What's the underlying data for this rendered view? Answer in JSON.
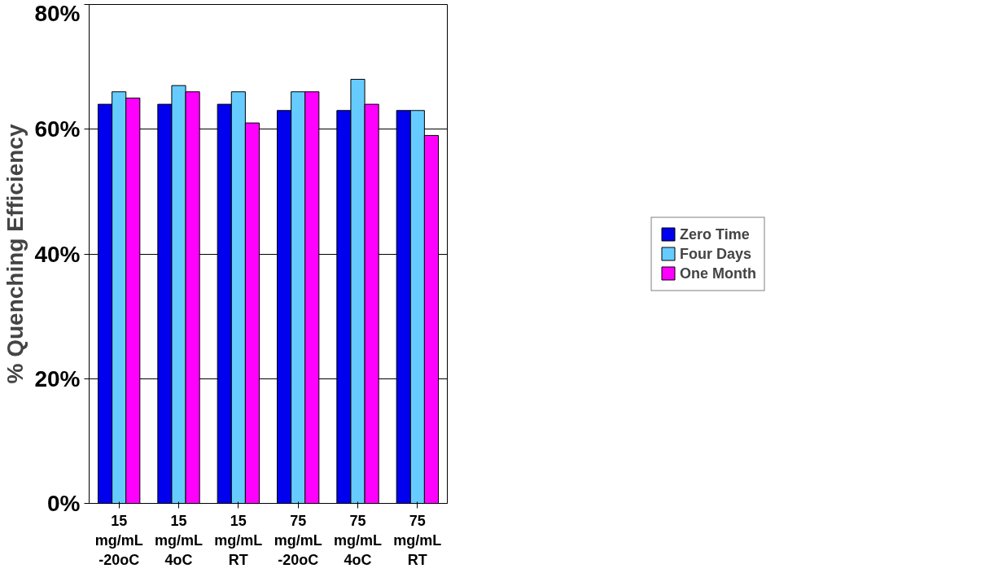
{
  "chart_data": {
    "type": "bar",
    "ylabel": "% Quenching Efficiency",
    "categories": [
      "15 mg/mL -20oC",
      "15 mg/mL 4oC",
      "15 mg/mL RT",
      "75 mg/mL -20oC",
      "75 mg/mL 4oC",
      "75 mg/mL RT"
    ],
    "series": [
      {
        "name": "Zero Time",
        "color": "#0000ee",
        "values": [
          64,
          64,
          64,
          63,
          63,
          63
        ]
      },
      {
        "name": "Four Days",
        "color": "#66ccff",
        "values": [
          66,
          67,
          66,
          66,
          68,
          63
        ]
      },
      {
        "name": "One Month",
        "color": "#ff00ff",
        "values": [
          65,
          66,
          61,
          66,
          64,
          59
        ]
      }
    ],
    "ylim": [
      0,
      80
    ],
    "yticks": [
      {
        "value": 0,
        "label": "0%"
      },
      {
        "value": 20,
        "label": "20%"
      },
      {
        "value": 40,
        "label": "40%"
      },
      {
        "value": 60,
        "label": "60%"
      },
      {
        "value": 80,
        "label": "80%"
      }
    ],
    "grid": "y",
    "legend": "right"
  }
}
